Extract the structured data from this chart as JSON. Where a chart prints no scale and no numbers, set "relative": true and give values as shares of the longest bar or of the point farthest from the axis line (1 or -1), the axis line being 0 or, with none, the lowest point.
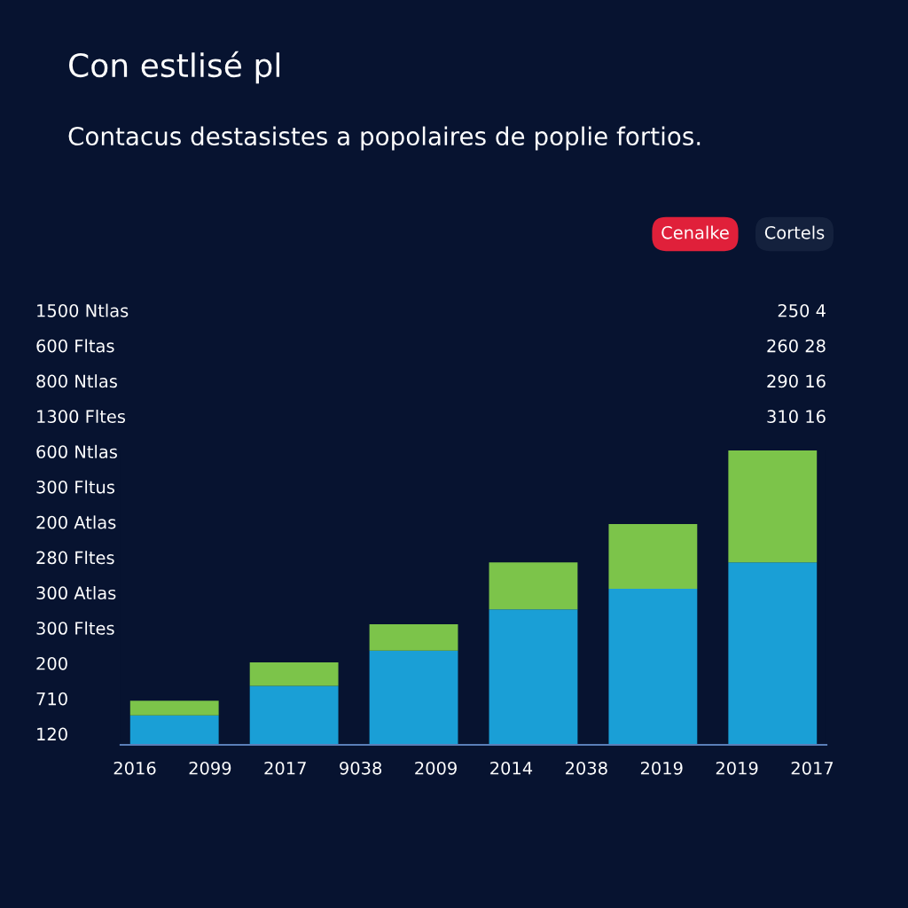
{
  "chart_data": {
    "type": "bar",
    "title": "Con estlisé pl",
    "subtitle": "Contacus destasistes a popolaires de poplie fortios.",
    "categories": [
      null,
      null,
      null,
      null,
      null,
      null
    ],
    "stacked": true,
    "relative": true,
    "grid": false,
    "legend": false,
    "series": [
      {
        "color": "#1a9fd6",
        "values": [
          0.1,
          0.2,
          0.32,
          0.46,
          0.53,
          0.62
        ]
      },
      {
        "color": "#7cc44a",
        "values": [
          0.05,
          0.08,
          0.09,
          0.16,
          0.22,
          0.38
        ]
      }
    ],
    "annotations": [
      "Cenalke",
      "Cortels",
      "1500 Ntlas",
      "600 Fltas",
      "800 Ntlas",
      "1300 Fltes",
      "600 Ntlas",
      "300 Fltus",
      "200 Atlas",
      "280 Fltes",
      "300 Atlas",
      "300 Fltes",
      "200",
      "710",
      "120",
      "250 4",
      "260 28",
      "290 16",
      "310 16",
      "2016",
      "2099",
      "2017",
      "9038",
      "2009",
      "2014",
      "2038",
      "2019",
      "2019",
      "2017"
    ]
  }
}
